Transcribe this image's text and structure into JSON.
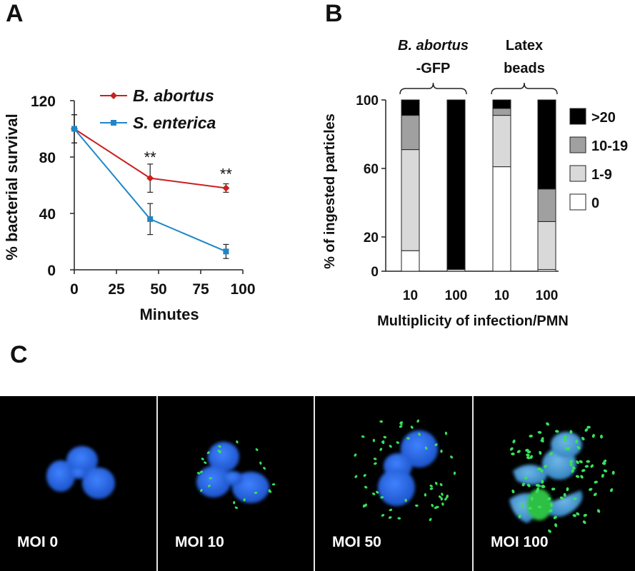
{
  "panels": {
    "a": "A",
    "b": "B",
    "c": "C"
  },
  "chart_data": [
    {
      "type": "line",
      "panel": "A",
      "xlabel": "Minutes",
      "ylabel": "% bacterial survival",
      "xlim": [
        0,
        100
      ],
      "ylim": [
        0,
        120
      ],
      "xticks": [
        0,
        25,
        50,
        75,
        100
      ],
      "yticks": [
        0,
        40,
        80,
        120
      ],
      "legend": "top-right",
      "series": [
        {
          "name": "B. abortus",
          "color": "#cc1f1f",
          "marker": "diamond",
          "x": [
            0,
            45,
            90
          ],
          "y": [
            100,
            65,
            58
          ],
          "err": [
            10,
            10,
            3
          ]
        },
        {
          "name": "S. enterica",
          "color": "#1f86c8",
          "marker": "square",
          "x": [
            0,
            45,
            90
          ],
          "y": [
            100,
            36,
            13
          ],
          "err": [
            10,
            11,
            5
          ]
        }
      ],
      "annotations": [
        {
          "text": "**",
          "x": 45,
          "y": 76
        },
        {
          "text": "**",
          "x": 90,
          "y": 64
        }
      ]
    },
    {
      "type": "bar",
      "stacked": true,
      "panel": "B",
      "xlabel": "Multiplicity of infection/PMN",
      "ylabel": "% of ingested particles",
      "ylim": [
        0,
        100
      ],
      "yticks": [
        0,
        20,
        60,
        100
      ],
      "categories": [
        "10",
        "100",
        "10",
        "100"
      ],
      "groups": [
        {
          "label_line1": "B. abortus",
          "label_line2": "-GFP",
          "categories": [
            0,
            1
          ]
        },
        {
          "label_line1": "Latex",
          "label_line2": "beads",
          "categories": [
            2,
            3
          ]
        }
      ],
      "legend": "right",
      "series": [
        {
          "name": "0",
          "color": "#ffffff",
          "values": [
            12,
            1,
            61,
            1
          ]
        },
        {
          "name": "1-9",
          "color": "#d9d9d9",
          "values": [
            59,
            0,
            30,
            28
          ]
        },
        {
          "name": "10-19",
          "color": "#a0a0a0",
          "values": [
            20,
            0,
            4,
            19
          ]
        },
        {
          "name": ">20",
          "color": "#000000",
          "values": [
            9,
            99,
            5,
            52
          ]
        }
      ]
    }
  ],
  "microscopy": [
    {
      "label": "MOI 0"
    },
    {
      "label": "MOI 10"
    },
    {
      "label": "MOI 50"
    },
    {
      "label": "MOI 100"
    }
  ],
  "colors": {
    "nucleus": "#2d6fe6",
    "bacteria": "#39e05a"
  }
}
